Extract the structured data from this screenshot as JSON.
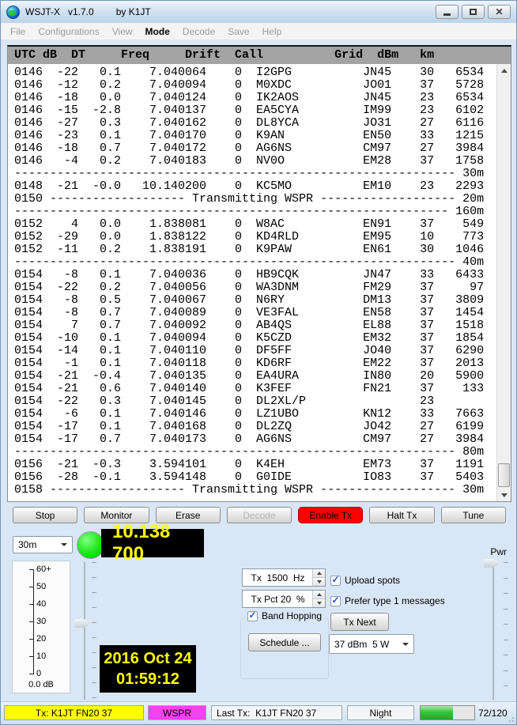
{
  "window": {
    "title": "WSJT-X   v1.7.0",
    "byline": "by K1JT",
    "controls": [
      "minimize",
      "maximize",
      "close"
    ]
  },
  "menu": {
    "items": [
      {
        "label": "File",
        "enabled": false
      },
      {
        "label": "Configurations",
        "enabled": false
      },
      {
        "label": "View",
        "enabled": false
      },
      {
        "label": "Mode",
        "enabled": true
      },
      {
        "label": "Decode",
        "enabled": false
      },
      {
        "label": "Save",
        "enabled": false
      },
      {
        "label": "Help",
        "enabled": false
      }
    ]
  },
  "decode_table": {
    "headers": [
      "UTC",
      "dB",
      "DT",
      "Freq",
      "Drift",
      "Call",
      "Grid",
      "dBm",
      "km"
    ],
    "tx_label": "Transmitting WSPR",
    "rows": [
      {
        "t": "d",
        "utc": "0146",
        "db": "-22",
        "dt": "0.1",
        "freq": "7.040064",
        "drift": "0",
        "call": "I2GPG",
        "grid": "JN45",
        "dbm": "30",
        "km": "6534"
      },
      {
        "t": "d",
        "utc": "0146",
        "db": "-12",
        "dt": "0.2",
        "freq": "7.040094",
        "drift": "0",
        "call": "M0XDC",
        "grid": "JO01",
        "dbm": "37",
        "km": "5728"
      },
      {
        "t": "d",
        "utc": "0146",
        "db": "-18",
        "dt": "0.0",
        "freq": "7.040124",
        "drift": "0",
        "call": "IK2AOS",
        "grid": "JN45",
        "dbm": "23",
        "km": "6534"
      },
      {
        "t": "d",
        "utc": "0146",
        "db": "-15",
        "dt": "-2.8",
        "freq": "7.040137",
        "drift": "0",
        "call": "EA5CYA",
        "grid": "IM99",
        "dbm": "23",
        "km": "6102"
      },
      {
        "t": "d",
        "utc": "0146",
        "db": "-27",
        "dt": "0.3",
        "freq": "7.040162",
        "drift": "0",
        "call": "DL8YCA",
        "grid": "JO31",
        "dbm": "27",
        "km": "6116"
      },
      {
        "t": "d",
        "utc": "0146",
        "db": "-23",
        "dt": "0.1",
        "freq": "7.040170",
        "drift": "0",
        "call": "K9AN",
        "grid": "EN50",
        "dbm": "33",
        "km": "1215"
      },
      {
        "t": "d",
        "utc": "0146",
        "db": "-18",
        "dt": "0.7",
        "freq": "7.040172",
        "drift": "0",
        "call": "AG6NS",
        "grid": "CM97",
        "dbm": "27",
        "km": "3984"
      },
      {
        "t": "d",
        "utc": "0146",
        "db": "-4",
        "dt": "0.2",
        "freq": "7.040183",
        "drift": "0",
        "call": "NV0O",
        "grid": "EM28",
        "dbm": "37",
        "km": "1758"
      },
      {
        "t": "s",
        "band": "30m"
      },
      {
        "t": "d",
        "utc": "0148",
        "db": "-21",
        "dt": "-0.0",
        "freq": "10.140200",
        "drift": "0",
        "call": "KC5MO",
        "grid": "EM10",
        "dbm": "23",
        "km": "2293"
      },
      {
        "t": "x",
        "utc": "0150",
        "band": "20m"
      },
      {
        "t": "s",
        "band": "160m"
      },
      {
        "t": "d",
        "utc": "0152",
        "db": "4",
        "dt": "0.0",
        "freq": "1.838081",
        "drift": "0",
        "call": "W8AC",
        "grid": "EN91",
        "dbm": "37",
        "km": "549"
      },
      {
        "t": "d",
        "utc": "0152",
        "db": "-29",
        "dt": "0.0",
        "freq": "1.838122",
        "drift": "0",
        "call": "KD4RLD",
        "grid": "EM95",
        "dbm": "10",
        "km": "773"
      },
      {
        "t": "d",
        "utc": "0152",
        "db": "-11",
        "dt": "0.2",
        "freq": "1.838191",
        "drift": "0",
        "call": "K9PAW",
        "grid": "EN61",
        "dbm": "30",
        "km": "1046"
      },
      {
        "t": "s",
        "band": "40m"
      },
      {
        "t": "d",
        "utc": "0154",
        "db": "-8",
        "dt": "0.1",
        "freq": "7.040036",
        "drift": "0",
        "call": "HB9CQK",
        "grid": "JN47",
        "dbm": "33",
        "km": "6433"
      },
      {
        "t": "d",
        "utc": "0154",
        "db": "-22",
        "dt": "0.2",
        "freq": "7.040056",
        "drift": "0",
        "call": "WA3DNM",
        "grid": "FM29",
        "dbm": "37",
        "km": "97"
      },
      {
        "t": "d",
        "utc": "0154",
        "db": "-8",
        "dt": "0.5",
        "freq": "7.040067",
        "drift": "0",
        "call": "N6RY",
        "grid": "DM13",
        "dbm": "37",
        "km": "3809"
      },
      {
        "t": "d",
        "utc": "0154",
        "db": "-8",
        "dt": "0.7",
        "freq": "7.040089",
        "drift": "0",
        "call": "VE3FAL",
        "grid": "EN58",
        "dbm": "37",
        "km": "1454"
      },
      {
        "t": "d",
        "utc": "0154",
        "db": "7",
        "dt": "0.7",
        "freq": "7.040092",
        "drift": "0",
        "call": "AB4QS",
        "grid": "EL88",
        "dbm": "37",
        "km": "1518"
      },
      {
        "t": "d",
        "utc": "0154",
        "db": "-10",
        "dt": "0.1",
        "freq": "7.040094",
        "drift": "0",
        "call": "K5CZD",
        "grid": "EM32",
        "dbm": "37",
        "km": "1854"
      },
      {
        "t": "d",
        "utc": "0154",
        "db": "-14",
        "dt": "0.1",
        "freq": "7.040110",
        "drift": "0",
        "call": "DF5FF",
        "grid": "JO40",
        "dbm": "37",
        "km": "6290"
      },
      {
        "t": "d",
        "utc": "0154",
        "db": "-1",
        "dt": "0.1",
        "freq": "7.040118",
        "drift": "0",
        "call": "KD6RF",
        "grid": "EM22",
        "dbm": "37",
        "km": "2013"
      },
      {
        "t": "d",
        "utc": "0154",
        "db": "-21",
        "dt": "-0.4",
        "freq": "7.040135",
        "drift": "0",
        "call": "EA4URA",
        "grid": "IN80",
        "dbm": "20",
        "km": "5900"
      },
      {
        "t": "d",
        "utc": "0154",
        "db": "-21",
        "dt": "0.6",
        "freq": "7.040140",
        "drift": "0",
        "call": "K3FEF",
        "grid": "FN21",
        "dbm": "37",
        "km": "133"
      },
      {
        "t": "d",
        "utc": "0154",
        "db": "-22",
        "dt": "0.3",
        "freq": "7.040145",
        "drift": "0",
        "call": "DL2XL/P",
        "grid": "",
        "dbm": "23",
        "km": ""
      },
      {
        "t": "d",
        "utc": "0154",
        "db": "-6",
        "dt": "0.1",
        "freq": "7.040146",
        "drift": "0",
        "call": "LZ1UBO",
        "grid": "KN12",
        "dbm": "33",
        "km": "7663"
      },
      {
        "t": "d",
        "utc": "0154",
        "db": "-17",
        "dt": "0.1",
        "freq": "7.040168",
        "drift": "0",
        "call": "DL2ZQ",
        "grid": "JO42",
        "dbm": "27",
        "km": "6199"
      },
      {
        "t": "d",
        "utc": "0154",
        "db": "-17",
        "dt": "0.7",
        "freq": "7.040173",
        "drift": "0",
        "call": "AG6NS",
        "grid": "CM97",
        "dbm": "27",
        "km": "3984"
      },
      {
        "t": "s",
        "band": "80m"
      },
      {
        "t": "d",
        "utc": "0156",
        "db": "-21",
        "dt": "-0.3",
        "freq": "3.594101",
        "drift": "0",
        "call": "K4EH",
        "grid": "EM73",
        "dbm": "37",
        "km": "1191"
      },
      {
        "t": "d",
        "utc": "0156",
        "db": "-28",
        "dt": "-0.1",
        "freq": "3.594148",
        "drift": "0",
        "call": "G0IDE",
        "grid": "IO83",
        "dbm": "37",
        "km": "5403"
      },
      {
        "t": "x",
        "utc": "0158",
        "band": "30m"
      }
    ]
  },
  "toolbar": {
    "buttons": [
      {
        "label": "Stop",
        "state": "normal"
      },
      {
        "label": "Monitor",
        "state": "normal"
      },
      {
        "label": "Erase",
        "state": "normal"
      },
      {
        "label": "Decode",
        "state": "disabled"
      },
      {
        "label": "Enable Tx",
        "state": "danger"
      },
      {
        "label": "Halt Tx",
        "state": "normal"
      },
      {
        "label": "Tune",
        "state": "normal"
      }
    ]
  },
  "band_select": {
    "value": "30m"
  },
  "freq_display": {
    "value": "10.138 700"
  },
  "pwr_label": "Pwr",
  "meter": {
    "ticks": [
      "60+",
      "50",
      "40",
      "30",
      "20",
      "10",
      "0"
    ],
    "value_label": "0.0 dB"
  },
  "datetime": {
    "date": "2016 Oct 24",
    "time": "01:59:12"
  },
  "tx_controls": {
    "tx_freq": {
      "display": "Tx  1500  Hz",
      "value": "1500"
    },
    "tx_pct": {
      "display": "Tx Pct 20  %",
      "value": "20"
    },
    "band_hopping": {
      "label": "Band Hopping",
      "checked": true
    },
    "schedule_label": "Schedule ...",
    "upload_spots": {
      "label": "Upload spots",
      "checked": true
    },
    "prefer_type1": {
      "label": "Prefer type 1 messages",
      "checked": true
    },
    "tx_next_label": "Tx Next",
    "power_value": "37 dBm  5 W"
  },
  "status_bar": {
    "tx": "Tx: K1JT FN20 37",
    "mode": "WSPR",
    "last_tx": "Last Tx:  K1JT FN20 37",
    "night": "Night",
    "progress": {
      "value": 72,
      "max": 120,
      "label": "72/120"
    }
  },
  "colors": {
    "enable_tx_red": "#ff0000",
    "lamp_green": "#00e000",
    "lcd_yellow": "#ffff00",
    "tx_panel_yellow": "#ffff00",
    "wspr_magenta": "#f542f5",
    "progress_green": "#39c439",
    "window_bg": "#d9e6f5"
  }
}
